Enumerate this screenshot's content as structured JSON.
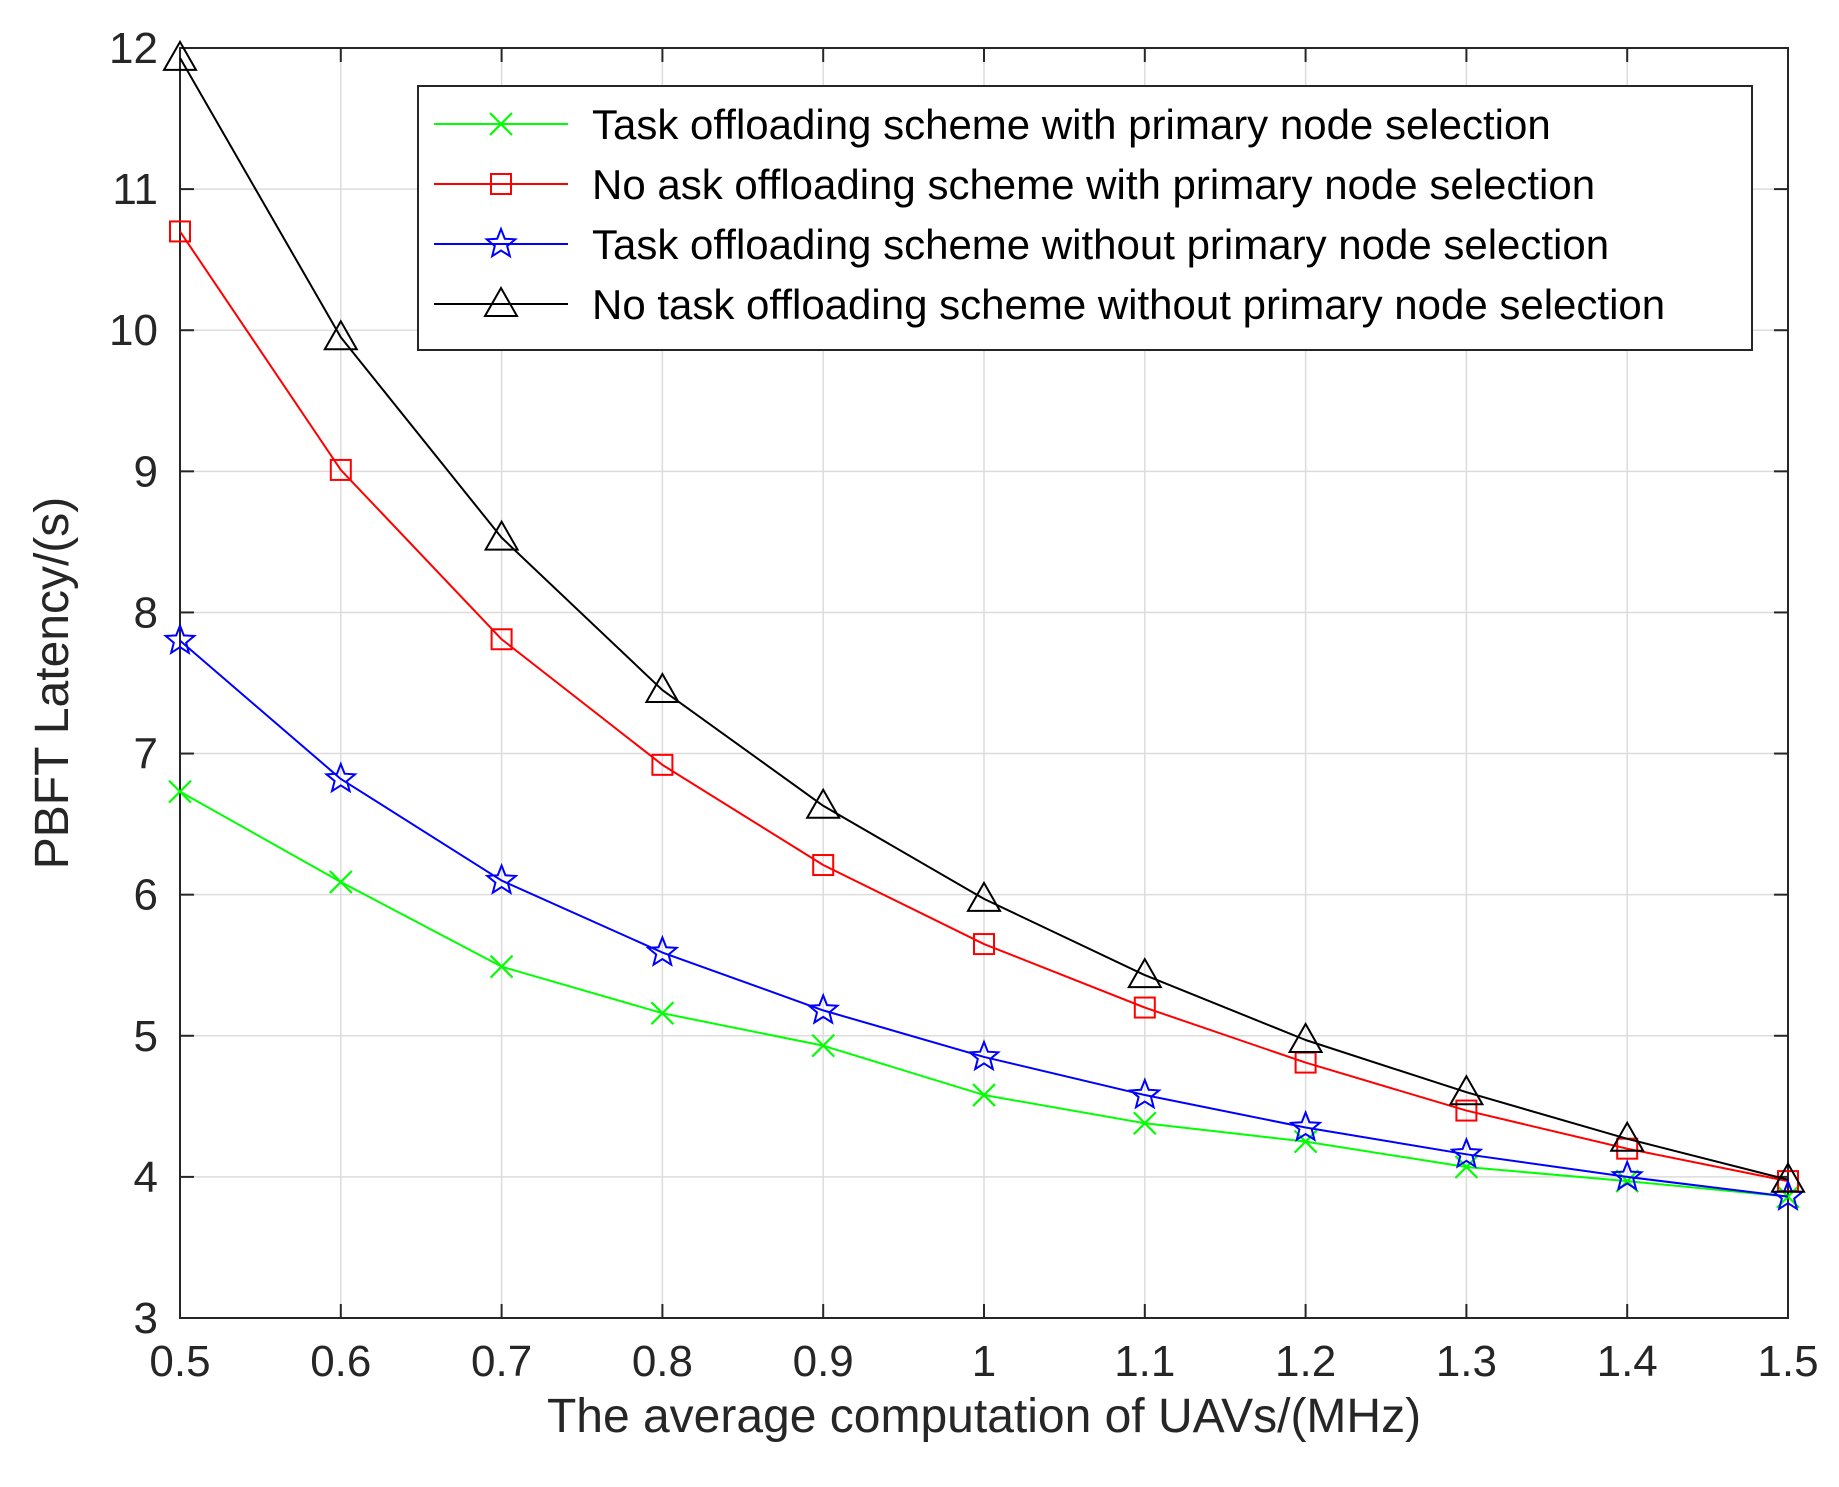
{
  "chart_data": {
    "type": "line",
    "title": "",
    "xlabel": "The average computation of UAVs/(MHz)",
    "ylabel": "PBFT  Latency/(s)",
    "xlim": [
      0.5,
      1.5
    ],
    "ylim": [
      3,
      12
    ],
    "grid": true,
    "legend_position": "top-right",
    "x": [
      0.5,
      0.6,
      0.7,
      0.8,
      0.9,
      1.0,
      1.1,
      1.2,
      1.3,
      1.4,
      1.5
    ],
    "x_tick_labels": [
      "0.5",
      "0.6",
      "0.7",
      "0.8",
      "0.9",
      "1",
      "1.1",
      "1.2",
      "1.3",
      "1.4",
      "1.5"
    ],
    "y_ticks": [
      3,
      4,
      5,
      6,
      7,
      8,
      9,
      10,
      11,
      12
    ],
    "y_tick_labels": [
      "3",
      "4",
      "5",
      "6",
      "7",
      "8",
      "9",
      "10",
      "11",
      "12"
    ],
    "series": [
      {
        "name": "Task offloading scheme with primary node selection",
        "color": "#00ff00",
        "marker": "x",
        "values": [
          6.73,
          6.09,
          5.49,
          5.16,
          4.93,
          4.58,
          4.38,
          4.25,
          4.07,
          3.97,
          3.86
        ]
      },
      {
        "name": "No ask offloading scheme with primary node selection",
        "color": "#ff0000",
        "marker": "square",
        "values": [
          10.7,
          9.01,
          7.81,
          6.92,
          6.21,
          5.65,
          5.2,
          4.81,
          4.47,
          4.2,
          3.97
        ]
      },
      {
        "name": "Task offloading scheme without primary node selection",
        "color": "#0000ff",
        "marker": "star",
        "values": [
          7.8,
          6.82,
          6.1,
          5.59,
          5.18,
          4.85,
          4.58,
          4.35,
          4.16,
          4.0,
          3.86
        ]
      },
      {
        "name": "No task offloading scheme without primary node selection",
        "color": "#000000",
        "marker": "triangle",
        "values": [
          11.93,
          9.95,
          8.53,
          7.45,
          6.63,
          5.97,
          5.43,
          4.97,
          4.6,
          4.27,
          3.98
        ]
      }
    ]
  }
}
